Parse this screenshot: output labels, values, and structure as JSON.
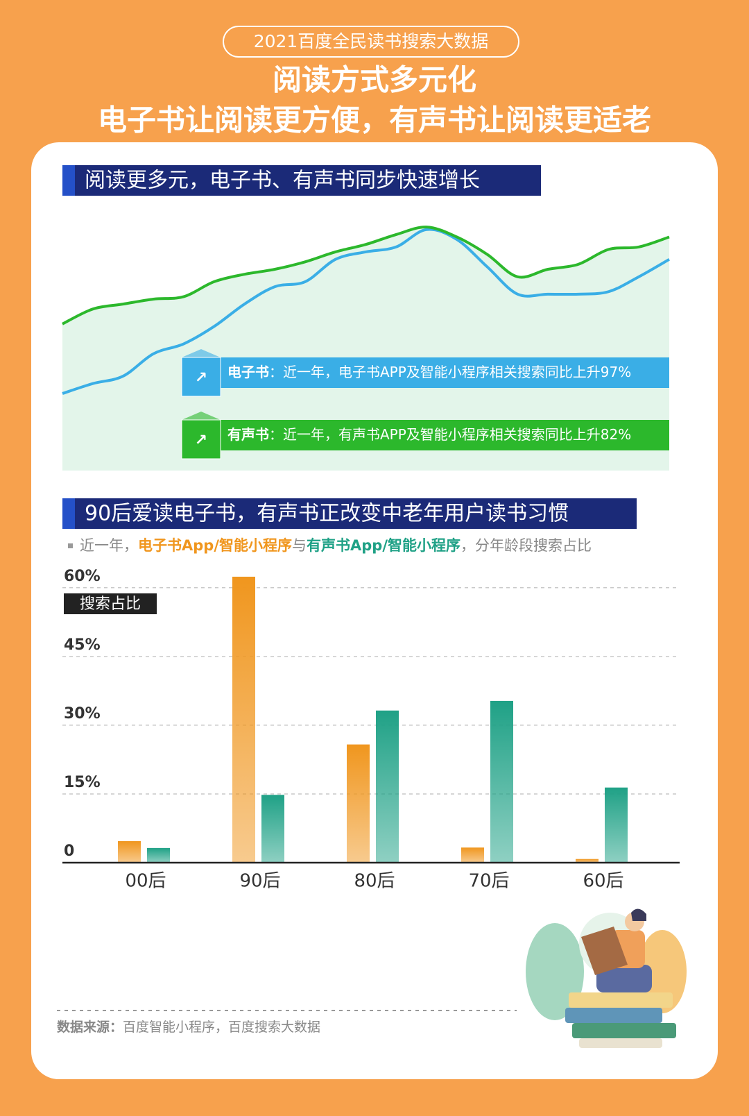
{
  "header": {
    "tag": "2021百度全民读书搜索大数据",
    "title": [
      "阅读方式多元化",
      "电子书让阅读更方便，有声书让阅读更适老"
    ]
  },
  "sections": [
    "阅读更多元，电子书、有声书同步快速增长",
    "90后爱读电子书，有声书正改变中老年用户读书习惯"
  ],
  "chart_data": [
    {
      "type": "line",
      "ylim": [
        0,
        100
      ],
      "series": [
        {
          "name": "电子书",
          "color": "#3aaee6",
          "values": [
            31,
            35,
            38,
            47,
            51,
            58,
            67,
            74,
            76,
            85,
            88,
            90,
            97,
            93,
            82,
            71,
            71,
            71,
            72,
            78,
            85
          ]
        },
        {
          "name": "有声书",
          "color": "#2cb82c",
          "values": [
            59,
            65,
            67,
            69,
            70,
            76,
            79,
            81,
            84,
            88,
            91,
            95,
            98,
            94,
            87,
            78,
            81,
            83,
            89,
            90,
            94
          ]
        }
      ],
      "annotations": [
        "：近一年，电子书APP及智能小程序相关搜索同比上升97%",
        "：近一年，有声书APP及智能小程序相关搜索同比上升82%"
      ]
    },
    {
      "type": "bar",
      "subtitle_parts": [
        "近一年，",
        "与",
        "，分年龄段搜索占比"
      ],
      "ylabel": "搜索占比",
      "categories": [
        "00后",
        "90后",
        "80后",
        "70后",
        "60后"
      ],
      "series": [
        {
          "name": "电子书App/智能小程序",
          "color": "#f0961e",
          "values": [
            4.7,
            62.4,
            25.8,
            3.3,
            0.8
          ]
        },
        {
          "name": "有声书App/智能小程序",
          "color": "#1fa186",
          "values": [
            3.2,
            14.8,
            33.2,
            35.3,
            16.4
          ]
        }
      ],
      "ylim": [
        0,
        63
      ],
      "yticks": [
        0,
        {
          "value": 15,
          "label": "15%"
        },
        {
          "value": 30,
          "label": "30%"
        },
        {
          "value": 45,
          "label": "45%"
        },
        {
          "value": 60,
          "label": "60%"
        }
      ],
      "grid": true
    }
  ],
  "footer": {
    "source_label": "数据来源：",
    "source": "百度智能小程序，百度搜索大数据"
  }
}
